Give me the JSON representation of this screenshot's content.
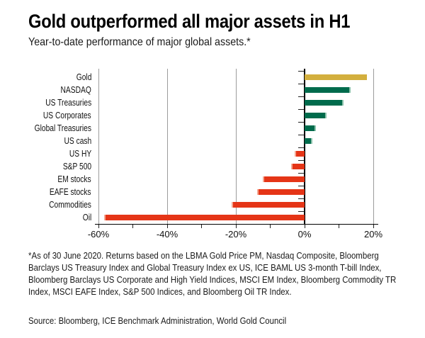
{
  "chart_data": {
    "type": "bar",
    "orientation": "horizontal",
    "title": "Gold outperformed all major assets in H1",
    "subtitle": "Year-to-date performance of major global assets.*",
    "categories": [
      "Gold",
      "NASDAQ",
      "US Treasuries",
      "US Corporates",
      "Global Treasuries",
      "US cash",
      "US HY",
      "S&P 500",
      "EM stocks",
      "EAFE stocks",
      "Commodities",
      "Oil"
    ],
    "values": [
      18.2,
      13.3,
      11.3,
      6.3,
      3.4,
      2.2,
      -2.9,
      -3.9,
      -12.2,
      -13.9,
      -21.3,
      -58.3
    ],
    "unit": "%",
    "xlim": [
      -60,
      20
    ],
    "x_tick_values": [
      -60,
      -40,
      -20,
      0,
      20
    ],
    "x_tick_labels": [
      "-60%",
      "-40%",
      "-20%",
      "0%",
      "20%"
    ],
    "minor_tick_step": 10,
    "grid": "vertical-major-gridlines",
    "legend": "none",
    "color_keys": [
      "gold",
      "positive",
      "positive",
      "positive",
      "positive",
      "positive",
      "negative",
      "negative",
      "negative",
      "negative",
      "negative",
      "negative"
    ],
    "colors": {
      "gold": "#D3AF3D",
      "positive": "#006B4C",
      "negative": "#E53517",
      "positive_cap": "#8CC3AC",
      "negative_cap": "#F5A893",
      "gridline": "#9C9C9C",
      "axis": "#000000"
    }
  },
  "notes": {
    "footnote": "*As of 30 June 2020. Returns based on the LBMA Gold Price PM, Nasdaq Composite, Bloomberg Barclays US Treasury Index and Global Treasury Index ex US, ICE BAML US 3-month T-bill Index, Bloomberg Barclays US Corporate and High Yield Indices, MSCI EM Index, Bloomberg Commodity TR Index, MSCI EAFE Index, S&P 500 Indices, and Bloomberg Oil TR Index.",
    "source": "Source: Bloomberg, ICE Benchmark Administration, World Gold Council"
  }
}
